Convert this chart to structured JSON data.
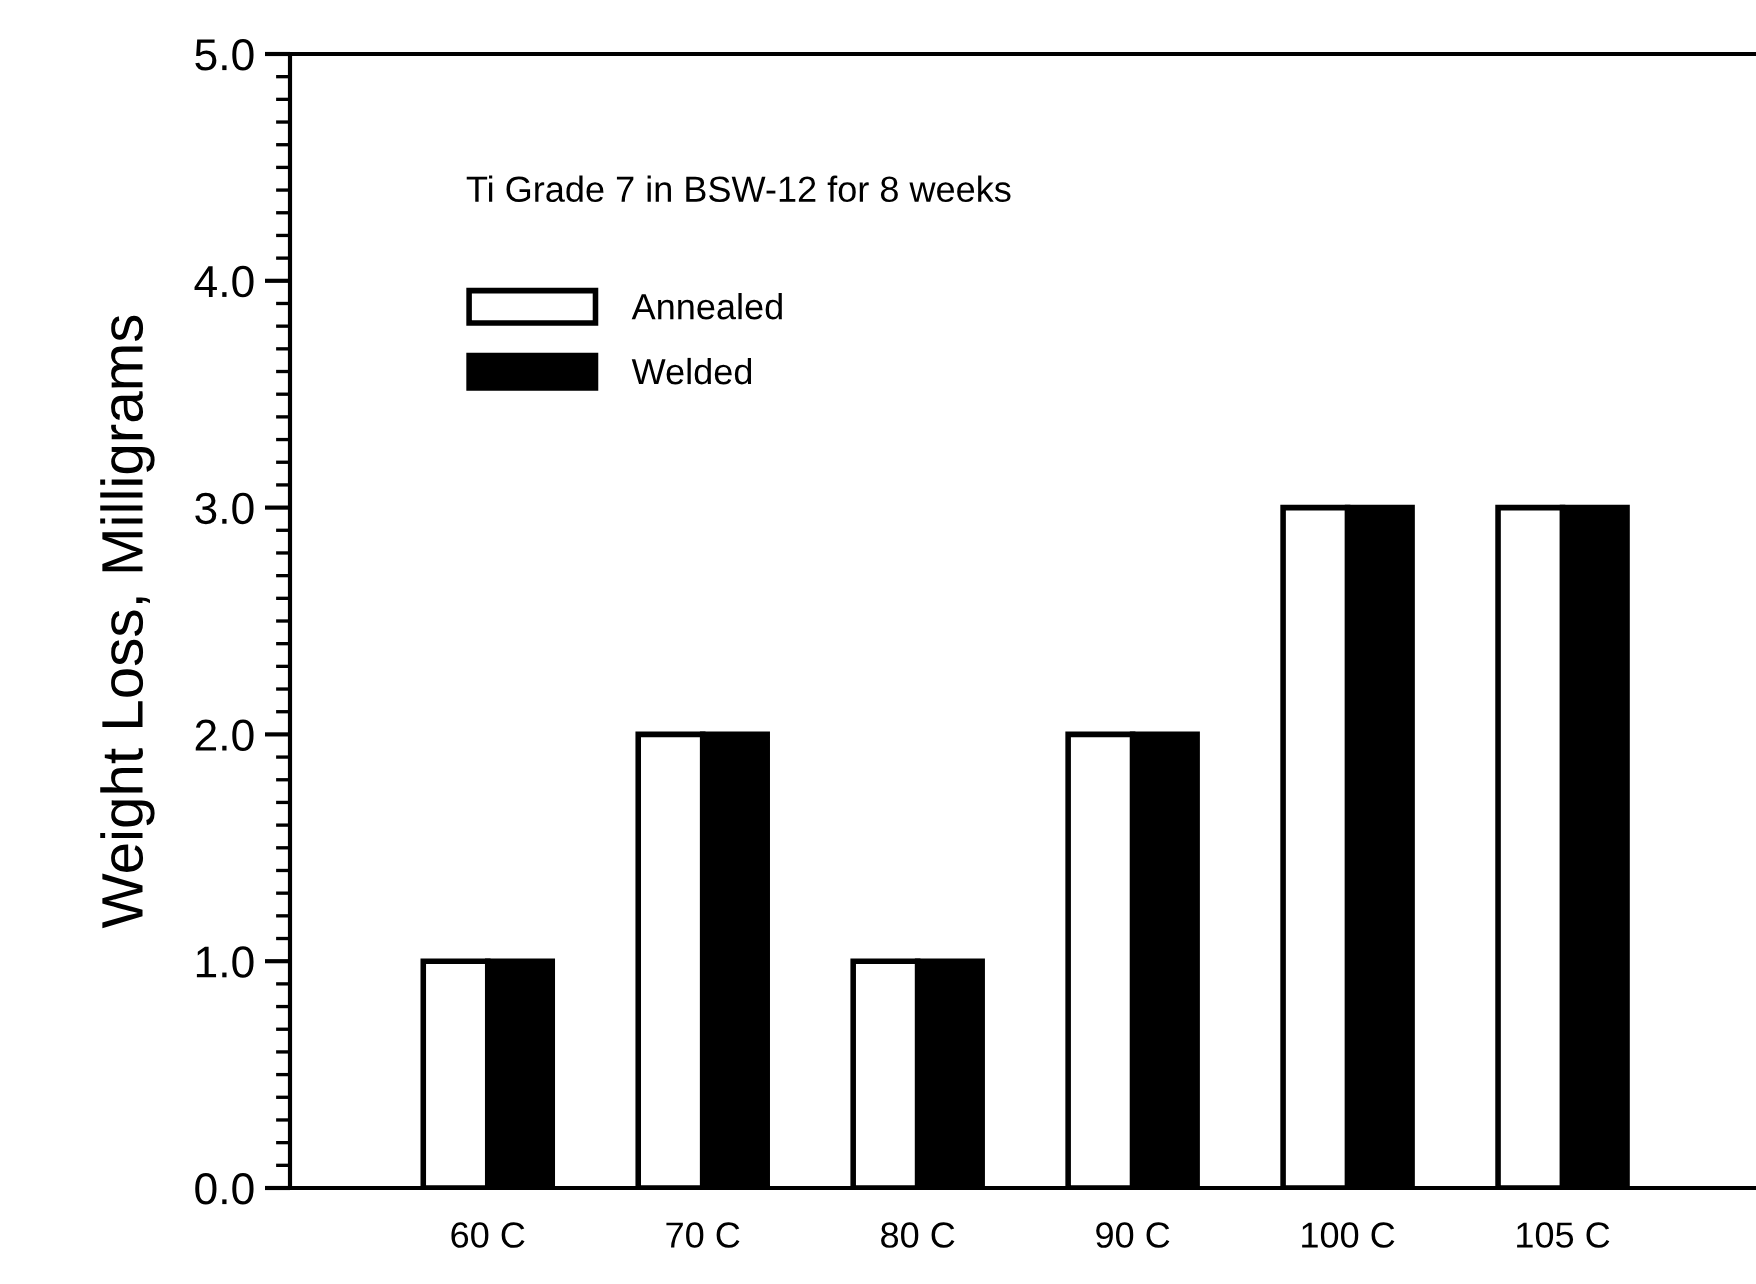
{
  "chart_data": {
    "type": "bar",
    "title": "Ti Grade 7 in BSW-12 for 8 weeks",
    "ylabel": "Weight Loss, Milligrams",
    "categories": [
      "60 C",
      "70 C",
      "80 C",
      "90 C",
      "100 C",
      "105 C"
    ],
    "series": [
      {
        "name": "Annealed",
        "color": "#ffffff",
        "values": [
          1.0,
          2.0,
          1.0,
          2.0,
          3.0,
          3.0
        ]
      },
      {
        "name": "Welded",
        "color": "#000000",
        "values": [
          1.0,
          2.0,
          1.0,
          2.0,
          3.0,
          3.0
        ]
      }
    ],
    "ylim": [
      0,
      5
    ],
    "yticks": [
      {
        "value": 0,
        "label": "0.0"
      },
      {
        "value": 1,
        "label": "1.0"
      },
      {
        "value": 2,
        "label": "2.0"
      },
      {
        "value": 3,
        "label": "3.0"
      },
      {
        "value": 4,
        "label": "4.0"
      },
      {
        "value": 5,
        "label": "5.0"
      }
    ],
    "legend": "top left",
    "grid": false
  }
}
